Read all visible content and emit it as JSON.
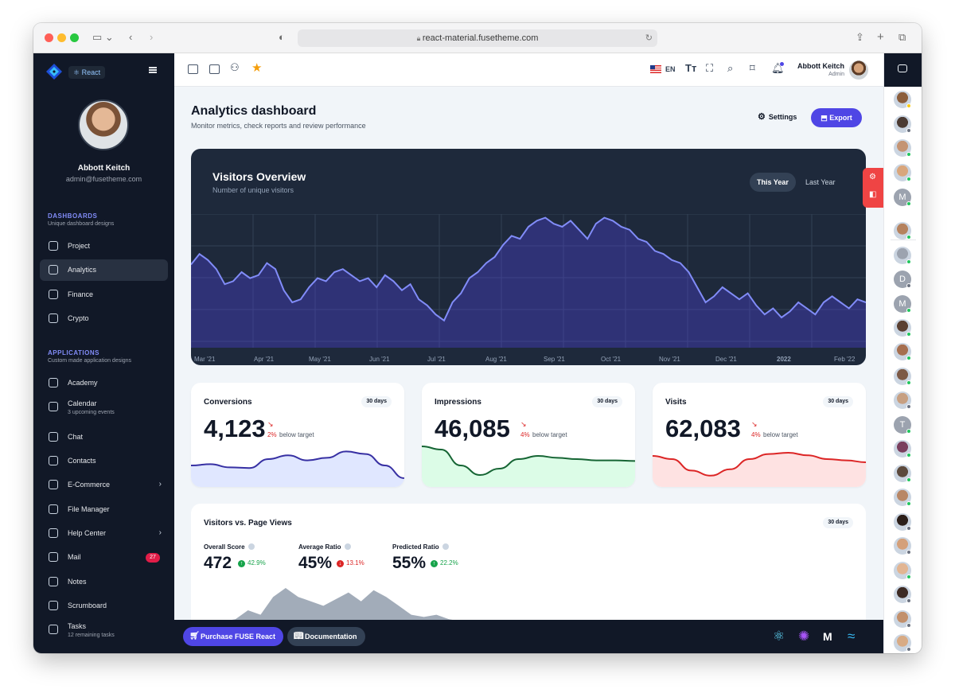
{
  "browser": {
    "url": "react-material.fusetheme.com"
  },
  "sidebar": {
    "badge": "React",
    "user": {
      "name": "Abbott Keitch",
      "email": "admin@fusetheme.com"
    },
    "sections": [
      {
        "title": "DASHBOARDS",
        "subtitle": "Unique dashboard designs"
      },
      {
        "title": "APPLICATIONS",
        "subtitle": "Custom made application designs"
      }
    ],
    "items": [
      {
        "label": "Project",
        "subtitle": "",
        "badge": "",
        "chevron": false,
        "active": false
      },
      {
        "label": "Analytics",
        "subtitle": "",
        "badge": "",
        "chevron": false,
        "active": true
      },
      {
        "label": "Finance",
        "subtitle": "",
        "badge": "",
        "chevron": false,
        "active": false
      },
      {
        "label": "Crypto",
        "subtitle": "",
        "badge": "",
        "chevron": false,
        "active": false
      },
      {
        "label": "Academy",
        "subtitle": "",
        "badge": "",
        "chevron": false,
        "active": false
      },
      {
        "label": "Calendar",
        "subtitle": "3 upcoming events",
        "badge": "",
        "chevron": false,
        "active": false
      },
      {
        "label": "Chat",
        "subtitle": "",
        "badge": "",
        "chevron": false,
        "active": false
      },
      {
        "label": "Contacts",
        "subtitle": "",
        "badge": "",
        "chevron": false,
        "active": false
      },
      {
        "label": "E-Commerce",
        "subtitle": "",
        "badge": "",
        "chevron": true,
        "active": false
      },
      {
        "label": "File Manager",
        "subtitle": "",
        "badge": "",
        "chevron": false,
        "active": false
      },
      {
        "label": "Help Center",
        "subtitle": "",
        "badge": "",
        "chevron": true,
        "active": false
      },
      {
        "label": "Mail",
        "subtitle": "",
        "badge": "27",
        "chevron": false,
        "active": false
      },
      {
        "label": "Notes",
        "subtitle": "",
        "badge": "",
        "chevron": false,
        "active": false
      },
      {
        "label": "Scrumboard",
        "subtitle": "",
        "badge": "",
        "chevron": false,
        "active": false
      },
      {
        "label": "Tasks",
        "subtitle": "12 remaining tasks",
        "badge": "",
        "chevron": false,
        "active": false
      }
    ]
  },
  "topbar": {
    "language": "EN",
    "user_name": "Abbott Keitch",
    "user_role": "Admin"
  },
  "page": {
    "title": "Analytics dashboard",
    "subtitle": "Monitor metrics, check reports and review performance",
    "settings_label": "Settings",
    "export_label": "Export"
  },
  "visitors": {
    "title": "Visitors Overview",
    "subtitle": "Number of unique visitors",
    "tabs": [
      "This Year",
      "Last Year"
    ],
    "active_tab": "This Year"
  },
  "stats": [
    {
      "title": "Conversions",
      "period": "30 days",
      "value": "4,123",
      "pct": "2%",
      "note": "below target",
      "color": "#3730a3",
      "fill": "#e0e7ff"
    },
    {
      "title": "Impressions",
      "period": "30 days",
      "value": "46,085",
      "pct": "4%",
      "note": "below target",
      "color": "#166534",
      "fill": "#dcfce7"
    },
    {
      "title": "Visits",
      "period": "30 days",
      "value": "62,083",
      "pct": "4%",
      "note": "below target",
      "color": "#dc2626",
      "fill": "#fee2e2"
    }
  ],
  "visitors_vs_views": {
    "title": "Visitors vs. Page Views",
    "period": "30 days",
    "stats": [
      {
        "label": "Overall Score",
        "value": "472",
        "change": "42.9%",
        "direction": "up"
      },
      {
        "label": "Average Ratio",
        "value": "45%",
        "change": "13.1%",
        "direction": "down"
      },
      {
        "label": "Predicted Ratio",
        "value": "55%",
        "change": "22.2%",
        "direction": "up"
      }
    ]
  },
  "footer": {
    "purchase_label": "Purchase FUSE React",
    "docs_label": "Documentation"
  },
  "chart_data": [
    {
      "type": "area",
      "title": "Visitors Overview",
      "x_ticks": [
        "Mar '21",
        "Apr '21",
        "May '21",
        "Jun '21",
        "Jul '21",
        "Aug '21",
        "Sep '21",
        "Oct '21",
        "Nov '21",
        "Dec '21",
        "2022",
        "Feb '22"
      ],
      "grid": true,
      "series": [
        {
          "values": [
            55,
            62,
            58,
            52,
            42,
            44,
            50,
            46,
            48,
            56,
            52,
            38,
            30,
            32,
            40,
            46,
            44,
            50,
            52,
            48,
            44,
            46,
            40,
            48,
            44,
            38,
            42,
            32,
            28,
            22,
            18,
            30,
            36,
            46,
            50,
            56,
            60,
            68,
            74,
            72,
            80,
            84,
            86,
            82,
            80,
            84,
            78,
            72,
            82,
            86,
            84,
            80,
            78,
            72,
            70,
            64,
            62,
            58,
            56,
            50,
            40,
            30,
            34,
            40,
            36,
            32,
            36,
            28,
            22,
            26,
            20,
            24,
            30,
            26,
            22,
            30,
            34,
            30,
            26,
            32,
            30
          ]
        }
      ]
    },
    {
      "type": "area",
      "title": "Conversions",
      "series": [
        {
          "values": [
            30,
            32,
            27,
            26,
            40,
            46,
            38,
            42,
            52,
            48,
            30,
            10
          ]
        }
      ]
    },
    {
      "type": "area",
      "title": "Impressions",
      "series": [
        {
          "values": [
            60,
            55,
            30,
            15,
            25,
            40,
            45,
            42,
            40,
            38,
            38,
            37
          ]
        }
      ]
    },
    {
      "type": "area",
      "title": "Visits",
      "series": [
        {
          "values": [
            45,
            40,
            22,
            14,
            24,
            40,
            48,
            50,
            46,
            40,
            38,
            35
          ]
        }
      ]
    },
    {
      "type": "area",
      "title": "Visitors vs. Page Views",
      "series": [
        {
          "values": [
            0,
            2,
            10,
            6,
            22,
            30,
            22,
            18,
            14,
            20,
            26,
            18,
            28,
            22,
            14,
            6,
            4,
            6,
            2,
            0
          ]
        }
      ]
    }
  ]
}
